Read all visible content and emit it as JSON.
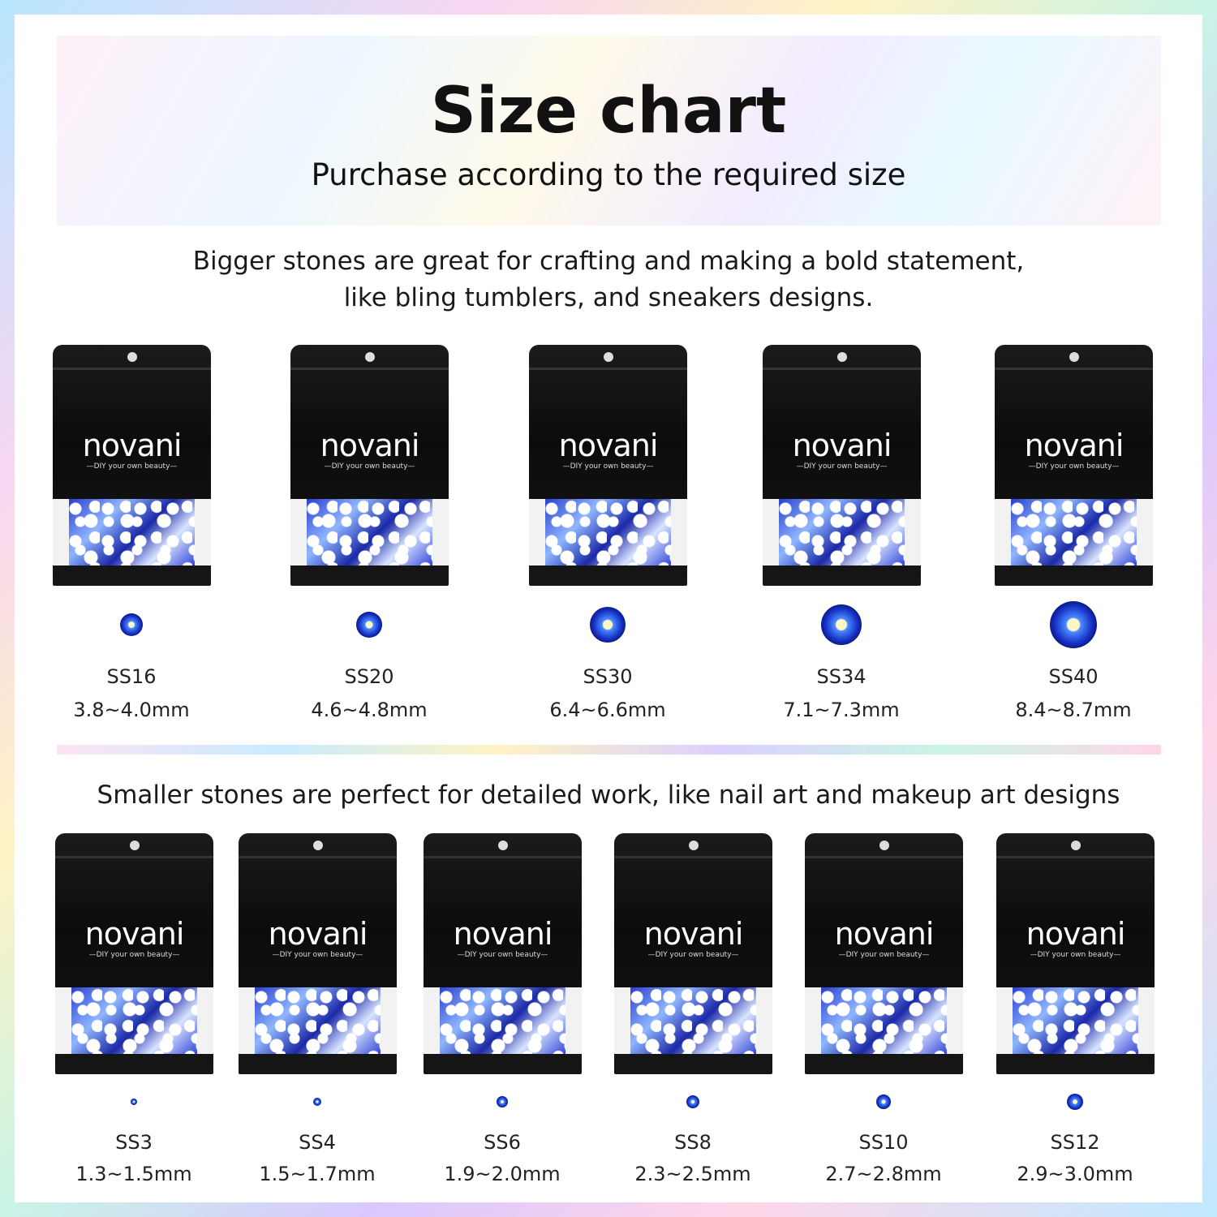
{
  "header": {
    "title": "Size chart",
    "subtitle": "Purchase according to the required size"
  },
  "big_section": {
    "line1": "Bigger stones are great for crafting and making a bold statement,",
    "line2": "like bling tumblers, and sneakers designs."
  },
  "small_section": {
    "text": "Smaller stones are perfect for detailed work,  like nail art and makeup art designs"
  },
  "brand": {
    "logo": "novani",
    "tagline": "—DIY your own beauty—"
  },
  "colors": {
    "stone": "#1833c8",
    "bag": "#111111"
  },
  "big_sizes": [
    {
      "code": "SS16",
      "size": "3.8~4.0mm"
    },
    {
      "code": "SS20",
      "size": "4.6~4.8mm"
    },
    {
      "code": "SS30",
      "size": "6.4~6.6mm"
    },
    {
      "code": "SS34",
      "size": "7.1~7.3mm"
    },
    {
      "code": "SS40",
      "size": "8.4~8.7mm"
    }
  ],
  "small_sizes": [
    {
      "code": "SS3",
      "size": "1.3~1.5mm"
    },
    {
      "code": "SS4",
      "size": "1.5~1.7mm"
    },
    {
      "code": "SS6",
      "size": "1.9~2.0mm"
    },
    {
      "code": "SS8",
      "size": "2.3~2.5mm"
    },
    {
      "code": "SS10",
      "size": "2.7~2.8mm"
    },
    {
      "code": "SS12",
      "size": "2.9~3.0mm"
    }
  ]
}
